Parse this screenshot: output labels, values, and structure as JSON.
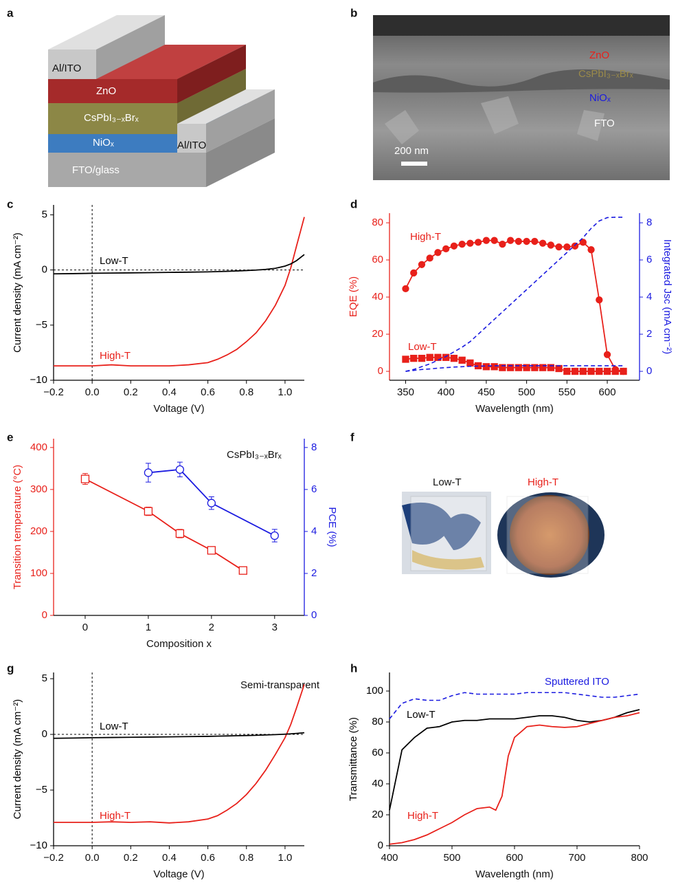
{
  "panels": {
    "a": {
      "letter": "a",
      "layers": [
        "Al/ITO",
        "ZnO",
        "CsPbI₃₋ₓBrₓ",
        "NiOₓ",
        "FTO/glass",
        "Al/ITO"
      ]
    },
    "b": {
      "letter": "b",
      "labels": [
        "ZnO",
        "CsPbI₃₋ₓBrₓ",
        "NiOₓ",
        "FTO"
      ],
      "scale_bar": "200 nm"
    },
    "f": {
      "letter": "f",
      "labels": [
        "Low-T",
        "High-T"
      ]
    }
  },
  "chart_data": [
    {
      "type": "line",
      "label": "c",
      "xlabel": "Voltage (V)",
      "ylabel": "Current density (mA cm⁻²)",
      "zero_lines": true,
      "xlim": [
        -0.2,
        1.1
      ],
      "ylim": [
        -10,
        5.9
      ],
      "xticks": [
        {
          "value": -0.2,
          "label": "−0.2"
        },
        {
          "value": 0,
          "label": "0.0"
        },
        0.2,
        0.4,
        0.6,
        0.8,
        {
          "value": 1,
          "label": "1.0"
        }
      ],
      "yticks": [
        {
          "value": -10,
          "label": "−10"
        },
        {
          "value": -5,
          "label": "−5"
        },
        0,
        5
      ],
      "x": [
        -0.2,
        -0.1,
        0,
        0.1,
        0.2,
        0.3,
        0.4,
        0.5,
        0.6,
        0.65,
        0.7,
        0.75,
        0.8,
        0.85,
        0.9,
        0.95,
        1.0,
        1.03,
        1.06,
        1.1
      ],
      "series": [
        {
          "name": "High-T",
          "color": "#e8201a",
          "values": [
            -8.7,
            -8.7,
            -8.7,
            -8.6,
            -8.7,
            -8.7,
            -8.7,
            -8.6,
            -8.4,
            -8.1,
            -7.7,
            -7.2,
            -6.5,
            -5.7,
            -4.6,
            -3.2,
            -1.4,
            0.2,
            2.2,
            4.8
          ]
        },
        {
          "name": "Low-T",
          "color": "#000000",
          "values": [
            -0.35,
            -0.33,
            -0.3,
            -0.28,
            -0.26,
            -0.24,
            -0.22,
            -0.2,
            -0.17,
            -0.15,
            -0.12,
            -0.09,
            -0.05,
            -0.01,
            0.05,
            0.15,
            0.35,
            0.55,
            0.85,
            1.4
          ]
        }
      ]
    },
    {
      "type": "line",
      "label": "d",
      "xlabel": "Wavelength (nm)",
      "ylabel": "EQE (%)",
      "y2label": "Integrated Jsc (mA cm⁻²)",
      "ycolor": "#e8201a",
      "y2color": "#1a1ae0",
      "xlim": [
        330,
        640
      ],
      "ylim": [
        -4.8,
        85.2
      ],
      "y2lim": [
        -0.48,
        8.52
      ],
      "xticks": [
        350,
        400,
        450,
        500,
        550,
        600
      ],
      "yticks": [
        0,
        20,
        40,
        60,
        80
      ],
      "y2ticks": [
        0,
        2,
        4,
        6,
        8
      ],
      "x": [
        350,
        360,
        370,
        380,
        390,
        400,
        410,
        420,
        430,
        440,
        450,
        460,
        470,
        480,
        490,
        500,
        510,
        520,
        530,
        540,
        550,
        560,
        570,
        580,
        590,
        600,
        610,
        620
      ],
      "series": [
        {
          "name": "High-T",
          "color": "#e8201a",
          "marker": "circle",
          "filled": true,
          "values": [
            44.5,
            53,
            57.5,
            61,
            64,
            66,
            67.5,
            68.5,
            69,
            69.5,
            70.5,
            70.5,
            68.5,
            70.5,
            70,
            70,
            70,
            69,
            68,
            67,
            67,
            67.5,
            69.5,
            65.5,
            38.5,
            9,
            1,
            0
          ]
        },
        {
          "name": "Low-T",
          "color": "#e8201a",
          "marker": "square",
          "filled": true,
          "values": [
            6.5,
            7,
            7,
            7.5,
            7.5,
            7.5,
            7,
            6,
            4.5,
            3,
            2.5,
            2.5,
            2,
            2,
            2,
            2,
            2,
            2,
            2,
            1.5,
            0,
            0,
            0,
            0,
            0,
            0,
            0,
            0
          ]
        },
        {
          "color": "#1a1ae0",
          "axis": "y2",
          "dash": true,
          "values": [
            0,
            0.1,
            0.25,
            0.4,
            0.6,
            0.8,
            1.05,
            1.3,
            1.6,
            2.0,
            2.4,
            2.8,
            3.2,
            3.6,
            4.0,
            4.4,
            4.8,
            5.2,
            5.6,
            6.0,
            6.4,
            6.8,
            7.2,
            7.7,
            8.1,
            8.28,
            8.3,
            8.3
          ]
        },
        {
          "color": "#1a1ae0",
          "axis": "y2",
          "dash": true,
          "values": [
            0,
            0.05,
            0.1,
            0.13,
            0.17,
            0.2,
            0.23,
            0.25,
            0.27,
            0.28,
            0.29,
            0.3,
            0.3,
            0.3,
            0.3,
            0.3,
            0.3,
            0.3,
            0.3,
            0.3,
            0.3,
            0.3,
            0.3,
            0.3,
            0.3,
            0.3,
            0.3,
            0.3
          ]
        }
      ]
    },
    {
      "type": "line",
      "label": "e",
      "xlabel": "Composition x",
      "ylabel": "Transition temperature (°C)",
      "y2label": "PCE (%)",
      "annotation": "CsPbI₃₋ₓBrₓ",
      "ycolor": "#e8201a",
      "y2color": "#1a1ae0",
      "xlim": [
        -0.5,
        3.47
      ],
      "ylim": [
        0,
        421
      ],
      "y2lim": [
        0,
        8.42
      ],
      "xticks": [
        0,
        1,
        2,
        3
      ],
      "yticks": [
        0,
        100,
        200,
        300,
        400
      ],
      "y2ticks": [
        0,
        2,
        4,
        6,
        8
      ],
      "series": [
        {
          "color": "#e8201a",
          "marker": "square",
          "filled": false,
          "x": [
            0,
            1,
            1.5,
            2,
            2.5
          ],
          "values": [
            325,
            248,
            195,
            155,
            107
          ],
          "errors": [
            13,
            10,
            10,
            7,
            4
          ]
        },
        {
          "color": "#1a1ae0",
          "marker": "circle",
          "filled": false,
          "axis": "y2",
          "x": [
            1,
            1.5,
            2,
            3
          ],
          "values": [
            6.8,
            6.95,
            5.35,
            3.8
          ],
          "errors": [
            0.45,
            0.35,
            0.3,
            0.3
          ]
        }
      ]
    },
    {
      "type": "line",
      "label": "g",
      "xlabel": "Voltage (V)",
      "ylabel": "Current density (mA cm⁻²)",
      "zero_lines": true,
      "annotation": "Semi-transparent",
      "xlim": [
        -0.2,
        1.1
      ],
      "ylim": [
        -10,
        5.56
      ],
      "xticks": [
        {
          "value": -0.2,
          "label": "−0.2"
        },
        {
          "value": 0,
          "label": "0.0"
        },
        0.2,
        0.4,
        0.6,
        0.8,
        {
          "value": 1,
          "label": "1.0"
        }
      ],
      "yticks": [
        {
          "value": -10,
          "label": "−10"
        },
        {
          "value": -5,
          "label": "−5"
        },
        0,
        5
      ],
      "x": [
        -0.2,
        -0.1,
        0,
        0.1,
        0.2,
        0.3,
        0.4,
        0.5,
        0.6,
        0.65,
        0.7,
        0.75,
        0.8,
        0.85,
        0.9,
        0.95,
        1.0,
        1.03,
        1.06,
        1.1
      ],
      "series": [
        {
          "name": "High-T",
          "color": "#e8201a",
          "values": [
            -7.9,
            -7.9,
            -7.9,
            -7.85,
            -7.9,
            -7.85,
            -7.95,
            -7.85,
            -7.6,
            -7.3,
            -6.8,
            -6.2,
            -5.4,
            -4.4,
            -3.2,
            -1.8,
            -0.3,
            0.9,
            2.4,
            4.5
          ]
        },
        {
          "name": "Low-T",
          "color": "#000000",
          "values": [
            -0.35,
            -0.33,
            -0.3,
            -0.28,
            -0.26,
            -0.24,
            -0.22,
            -0.2,
            -0.18,
            -0.16,
            -0.14,
            -0.12,
            -0.1,
            -0.08,
            -0.05,
            -0.02,
            0.02,
            0.05,
            0.09,
            0.15
          ]
        }
      ]
    },
    {
      "type": "line",
      "label": "h",
      "xlabel": "Wavelength (nm)",
      "ylabel": "Transmittance (%)",
      "xlim": [
        400,
        800
      ],
      "ylim": [
        0,
        112
      ],
      "xticks": [
        400,
        500,
        600,
        700,
        800
      ],
      "yticks": [
        0,
        20,
        40,
        60,
        80,
        100
      ],
      "x": [
        400,
        420,
        440,
        460,
        480,
        500,
        520,
        540,
        560,
        570,
        580,
        590,
        600,
        620,
        640,
        660,
        680,
        700,
        720,
        740,
        760,
        780,
        800
      ],
      "series": [
        {
          "name": "Sputtered ITO",
          "color": "#1a1ae0",
          "dash": true,
          "values": [
            82,
            92,
            95,
            94,
            94,
            97,
            99,
            98,
            98,
            98,
            98,
            98,
            98,
            99,
            99,
            99,
            99,
            98,
            97,
            96,
            96,
            97,
            98
          ]
        },
        {
          "name": "Low-T",
          "color": "#000000",
          "values": [
            23,
            62,
            70,
            76,
            77,
            80,
            81,
            81,
            82,
            82,
            82,
            82,
            82,
            83,
            84,
            84,
            83,
            81,
            80,
            81,
            83,
            86,
            88
          ]
        },
        {
          "name": "High-T",
          "color": "#e8201a",
          "values": [
            1,
            2,
            4,
            7,
            11,
            15,
            20,
            24,
            25,
            23,
            32,
            58,
            70,
            77,
            78,
            77,
            76.5,
            77,
            79,
            81,
            83,
            84,
            86
          ]
        }
      ]
    }
  ]
}
